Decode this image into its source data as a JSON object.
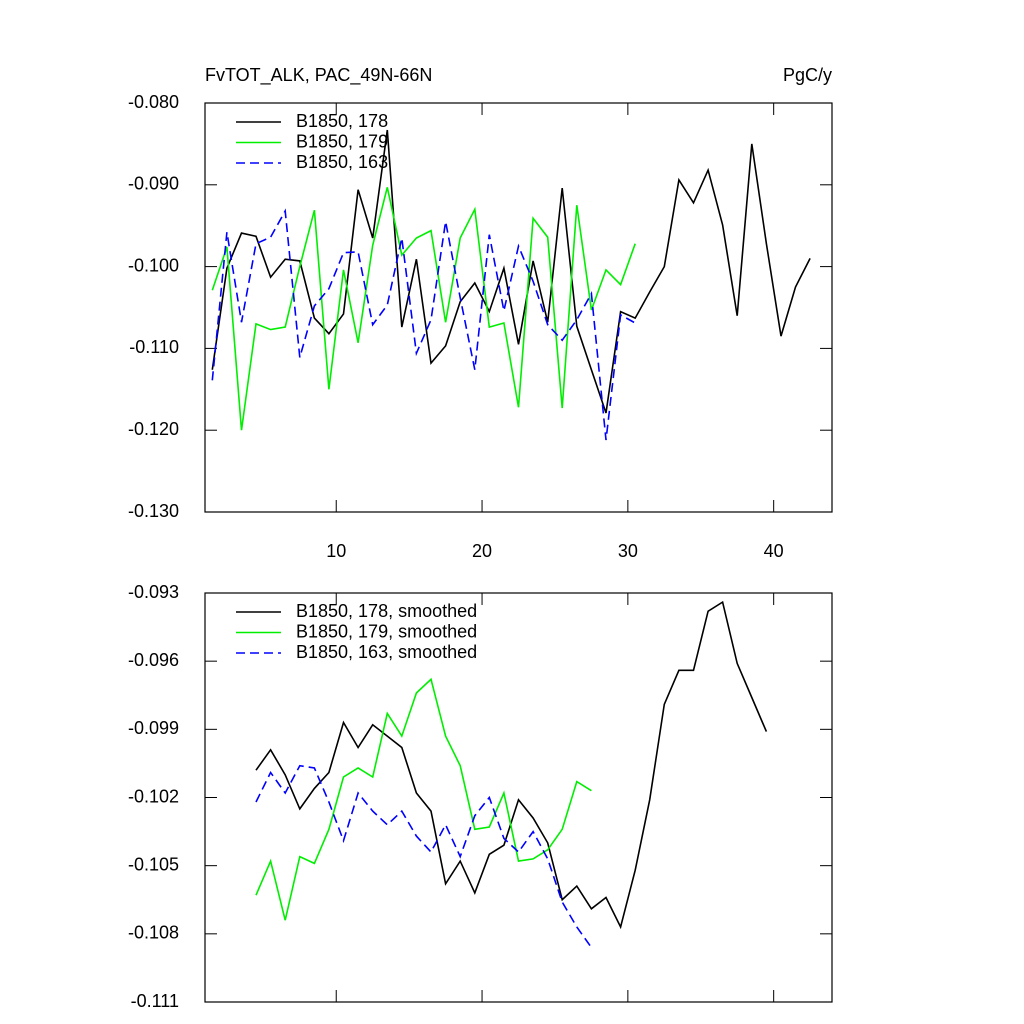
{
  "chart_data": [
    {
      "type": "line",
      "title": "FvTOT_ALK, PAC_49N-66N",
      "units": "PgC/y",
      "xlim": [
        1,
        44
      ],
      "xticks": [
        10,
        20,
        30,
        40
      ],
      "ylim": [
        -0.13,
        -0.08
      ],
      "yticks": [
        {
          "value": -0.08,
          "label": "-0.080"
        },
        {
          "value": -0.09,
          "label": "-0.090"
        },
        {
          "value": -0.1,
          "label": "-0.100"
        },
        {
          "value": -0.11,
          "label": "-0.110"
        },
        {
          "value": -0.12,
          "label": "-0.120"
        },
        {
          "value": -0.13,
          "label": "-0.130"
        }
      ],
      "series": [
        {
          "name": "B1850, 178",
          "color": "#000000",
          "dash": false,
          "x": [
            1.5,
            2.5,
            3.5,
            4.5,
            5.5,
            6.5,
            7.5,
            8.5,
            9.5,
            10.5,
            11.5,
            12.5,
            13.5,
            14.5,
            15.5,
            16.5,
            17.5,
            18.5,
            19.5,
            20.5,
            21.5,
            22.5,
            23.5,
            24.5,
            25.5,
            26.5,
            27.5,
            28.5,
            29.5,
            30.5,
            31.5,
            32.5,
            33.5,
            34.5,
            35.5,
            36.5,
            37.5,
            38.5,
            39.5,
            40.5,
            41.5,
            42.5
          ],
          "values": [
            -0.1126,
            -0.1002,
            -0.0959,
            -0.0963,
            -0.1013,
            -0.0991,
            -0.0993,
            -0.1063,
            -0.1082,
            -0.1058,
            -0.0906,
            -0.0965,
            -0.0833,
            -0.1074,
            -0.0991,
            -0.1118,
            -0.1097,
            -0.1043,
            -0.102,
            -0.1055,
            -0.1002,
            -0.1095,
            -0.0993,
            -0.1068,
            -0.0904,
            -0.1073,
            -0.1126,
            -0.1179,
            -0.1055,
            -0.1063,
            -0.1031,
            -0.1,
            -0.0894,
            -0.0922,
            -0.0882,
            -0.0949,
            -0.106,
            -0.085,
            -0.0972,
            -0.1085,
            -0.1025,
            -0.099
          ]
        },
        {
          "name": "B1850, 179",
          "color": "#00ee00",
          "dash": false,
          "x": [
            1.5,
            2.5,
            3.5,
            4.5,
            5.5,
            6.5,
            7.5,
            8.5,
            9.5,
            10.5,
            11.5,
            12.5,
            13.5,
            14.5,
            15.5,
            16.5,
            17.5,
            18.5,
            19.5,
            20.5,
            21.5,
            22.5,
            23.5,
            24.5,
            25.5,
            26.5,
            27.5,
            28.5,
            29.5,
            30.5
          ],
          "values": [
            -0.1029,
            -0.0976,
            -0.12,
            -0.107,
            -0.1077,
            -0.1074,
            -0.1,
            -0.0931,
            -0.115,
            -0.1004,
            -0.1093,
            -0.0974,
            -0.0903,
            -0.0986,
            -0.0965,
            -0.0956,
            -0.1068,
            -0.0965,
            -0.093,
            -0.1074,
            -0.1069,
            -0.1172,
            -0.0941,
            -0.0964,
            -0.1173,
            -0.0925,
            -0.1053,
            -0.1004,
            -0.1022,
            -0.0972
          ]
        },
        {
          "name": "B1850, 163",
          "color": "#0000ff",
          "dash": true,
          "x": [
            1.5,
            2.5,
            3.5,
            4.5,
            5.5,
            6.5,
            7.5,
            8.5,
            9.5,
            10.5,
            11.5,
            12.5,
            13.5,
            14.5,
            15.5,
            16.5,
            17.5,
            18.5,
            19.5,
            20.5,
            21.5,
            22.5,
            23.5,
            24.5,
            25.5,
            26.5,
            27.5,
            28.5,
            29.5,
            30.5
          ],
          "values": [
            -0.1139,
            -0.0958,
            -0.1068,
            -0.0972,
            -0.0964,
            -0.0932,
            -0.1111,
            -0.1048,
            -0.1027,
            -0.0983,
            -0.0982,
            -0.1071,
            -0.1047,
            -0.0965,
            -0.1106,
            -0.1065,
            -0.0945,
            -0.1038,
            -0.1126,
            -0.0961,
            -0.1054,
            -0.0975,
            -0.1018,
            -0.1071,
            -0.109,
            -0.1065,
            -0.1033,
            -0.1212,
            -0.1059,
            -0.1069
          ]
        }
      ]
    },
    {
      "type": "line",
      "xlim": [
        1,
        44
      ],
      "xticks": [
        10,
        20,
        30,
        40
      ],
      "ylim": [
        -0.111,
        -0.093
      ],
      "yticks": [
        -0.093,
        -0.096,
        -0.099,
        -0.102,
        -0.105,
        -0.108,
        -0.111
      ],
      "series": [
        {
          "name": "B1850, 178, smoothed",
          "color": "#000000",
          "dash": false,
          "x": [
            4.5,
            5.5,
            6.5,
            7.5,
            8.5,
            9.5,
            10.5,
            11.5,
            12.5,
            13.5,
            14.5,
            15.5,
            16.5,
            17.5,
            18.5,
            19.5,
            20.5,
            21.5,
            22.5,
            23.5,
            24.5,
            25.5,
            26.5,
            27.5,
            28.5,
            29.5,
            30.5,
            31.5,
            32.5,
            33.5,
            34.5,
            35.5,
            36.5,
            37.5,
            38.5,
            39.5
          ],
          "values": [
            -0.1008,
            -0.0999,
            -0.101,
            -0.1025,
            -0.1016,
            -0.1009,
            -0.0987,
            -0.0998,
            -0.0988,
            -0.0993,
            -0.0998,
            -0.1018,
            -0.1026,
            -0.1058,
            -0.1048,
            -0.1062,
            -0.1045,
            -0.1041,
            -0.1021,
            -0.1029,
            -0.104,
            -0.1065,
            -0.1059,
            -0.1069,
            -0.1064,
            -0.1077,
            -0.1052,
            -0.1021,
            -0.0979,
            -0.0964,
            -0.0964,
            -0.0938,
            -0.0934,
            -0.0961,
            -0.0976,
            -0.0991
          ]
        },
        {
          "name": "B1850, 179, smoothed",
          "color": "#00ee00",
          "dash": false,
          "x": [
            4.5,
            5.5,
            6.5,
            7.5,
            8.5,
            9.5,
            10.5,
            11.5,
            12.5,
            13.5,
            14.5,
            15.5,
            16.5,
            17.5,
            18.5,
            19.5,
            20.5,
            21.5,
            22.5,
            23.5,
            24.5,
            25.5,
            26.5,
            27.5
          ],
          "values": [
            -0.1063,
            -0.1048,
            -0.1074,
            -0.1046,
            -0.1049,
            -0.1034,
            -0.1011,
            -0.1007,
            -0.1011,
            -0.0983,
            -0.0993,
            -0.0974,
            -0.0968,
            -0.0993,
            -0.1006,
            -0.1034,
            -0.1033,
            -0.1018,
            -0.1048,
            -0.1047,
            -0.1043,
            -0.1034,
            -0.1013,
            -0.1017
          ]
        },
        {
          "name": "B1850, 163, smoothed",
          "color": "#0000ff",
          "dash": true,
          "x": [
            4.5,
            5.5,
            6.5,
            7.5,
            8.5,
            9.5,
            10.5,
            11.5,
            12.5,
            13.5,
            14.5,
            15.5,
            16.5,
            17.5,
            18.5,
            19.5,
            20.5,
            21.5,
            22.5,
            23.5,
            24.5,
            25.5,
            26.5,
            27.5
          ],
          "values": [
            -0.1022,
            -0.1009,
            -0.1018,
            -0.1006,
            -0.1007,
            -0.1022,
            -0.1039,
            -0.1018,
            -0.1026,
            -0.1032,
            -0.1026,
            -0.1037,
            -0.1044,
            -0.1032,
            -0.1046,
            -0.1028,
            -0.102,
            -0.1038,
            -0.1044,
            -0.1035,
            -0.1047,
            -0.1066,
            -0.1077,
            -0.1086
          ]
        }
      ]
    }
  ]
}
